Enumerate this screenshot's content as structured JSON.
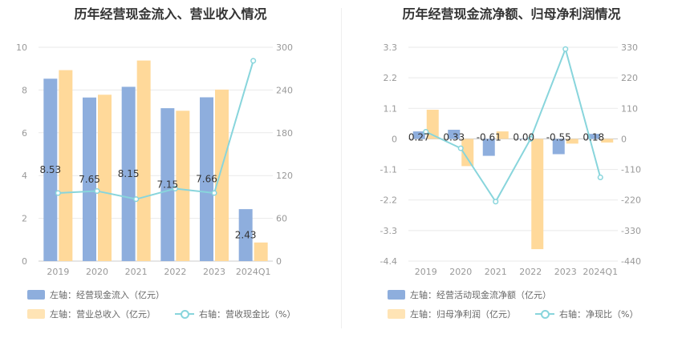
{
  "colors": {
    "bar1": "#8eaedd",
    "bar2": "#ffd99a",
    "line": "#88d5dc",
    "axis_text": "#999999",
    "grid": "#e9e9e9"
  },
  "chart_data": [
    {
      "type": "bar",
      "title": "历年经营现金流入、营业收入情况",
      "categories": [
        "2019",
        "2020",
        "2021",
        "2022",
        "2023",
        "2024Q1"
      ],
      "y_left": {
        "ylim": [
          0,
          10
        ],
        "ticks": [
          "0",
          "2",
          "4",
          "6",
          "8",
          "10"
        ]
      },
      "y_right": {
        "ylim": [
          0,
          300
        ],
        "ticks": [
          "0",
          "60",
          "120",
          "180",
          "240",
          "300"
        ]
      },
      "series": [
        {
          "name": "左轴：经营现金流入（亿元）",
          "type": "bar",
          "axis": "left",
          "values": [
            8.53,
            7.65,
            8.15,
            7.15,
            7.66,
            2.43
          ],
          "labels": [
            "8.53",
            "7.65",
            "8.15",
            "7.15",
            "7.66",
            "2.43"
          ]
        },
        {
          "name": "左轴：营业总收入（亿元）",
          "type": "bar",
          "axis": "left",
          "values": [
            8.93,
            7.78,
            9.38,
            7.03,
            8.02,
            0.87
          ]
        },
        {
          "name": "右轴：营收现金比（%）",
          "type": "line",
          "axis": "right",
          "values": [
            95.5,
            98.3,
            86.9,
            101.7,
            95.5,
            281
          ]
        }
      ],
      "legend": [
        "左轴：经营现金流入（亿元）",
        "左轴：营业总收入（亿元）",
        "右轴：营收现金比（%）"
      ]
    },
    {
      "type": "bar",
      "title": "历年经营现金流净额、归母净利润情况",
      "categories": [
        "2019",
        "2020",
        "2021",
        "2022",
        "2023",
        "2024Q1"
      ],
      "y_left": {
        "ylim": [
          -4.4,
          3.3
        ],
        "ticks": [
          "-4.4",
          "-3.3",
          "-2.2",
          "-1.1",
          "0",
          "1.1",
          "2.2",
          "3.3"
        ]
      },
      "y_right": {
        "ylim": [
          -440,
          330
        ],
        "ticks": [
          "-440",
          "-330",
          "-220",
          "-110",
          "0",
          "110",
          "220",
          "330"
        ]
      },
      "series": [
        {
          "name": "左轴：经营活动现金流净额（亿元）",
          "type": "bar",
          "axis": "left",
          "values": [
            0.27,
            0.33,
            -0.61,
            0.0,
            -0.55,
            0.18
          ],
          "labels": [
            "0.27",
            "0.33",
            "-0.61",
            "0.00",
            "-0.55",
            "0.18"
          ]
        },
        {
          "name": "左轴：归母净利润（亿元）",
          "type": "bar",
          "axis": "left",
          "values": [
            1.05,
            -0.98,
            0.27,
            -3.97,
            -0.17,
            -0.13
          ]
        },
        {
          "name": "右轴：净现比（%）",
          "type": "line",
          "axis": "right",
          "values": [
            25.7,
            -33.7,
            -225.9,
            0,
            323.5,
            -138.5
          ]
        }
      ],
      "legend": [
        "左轴：经营活动现金流净额（亿元）",
        "左轴：归母净利润（亿元）",
        "右轴：净现比（%）"
      ]
    }
  ]
}
